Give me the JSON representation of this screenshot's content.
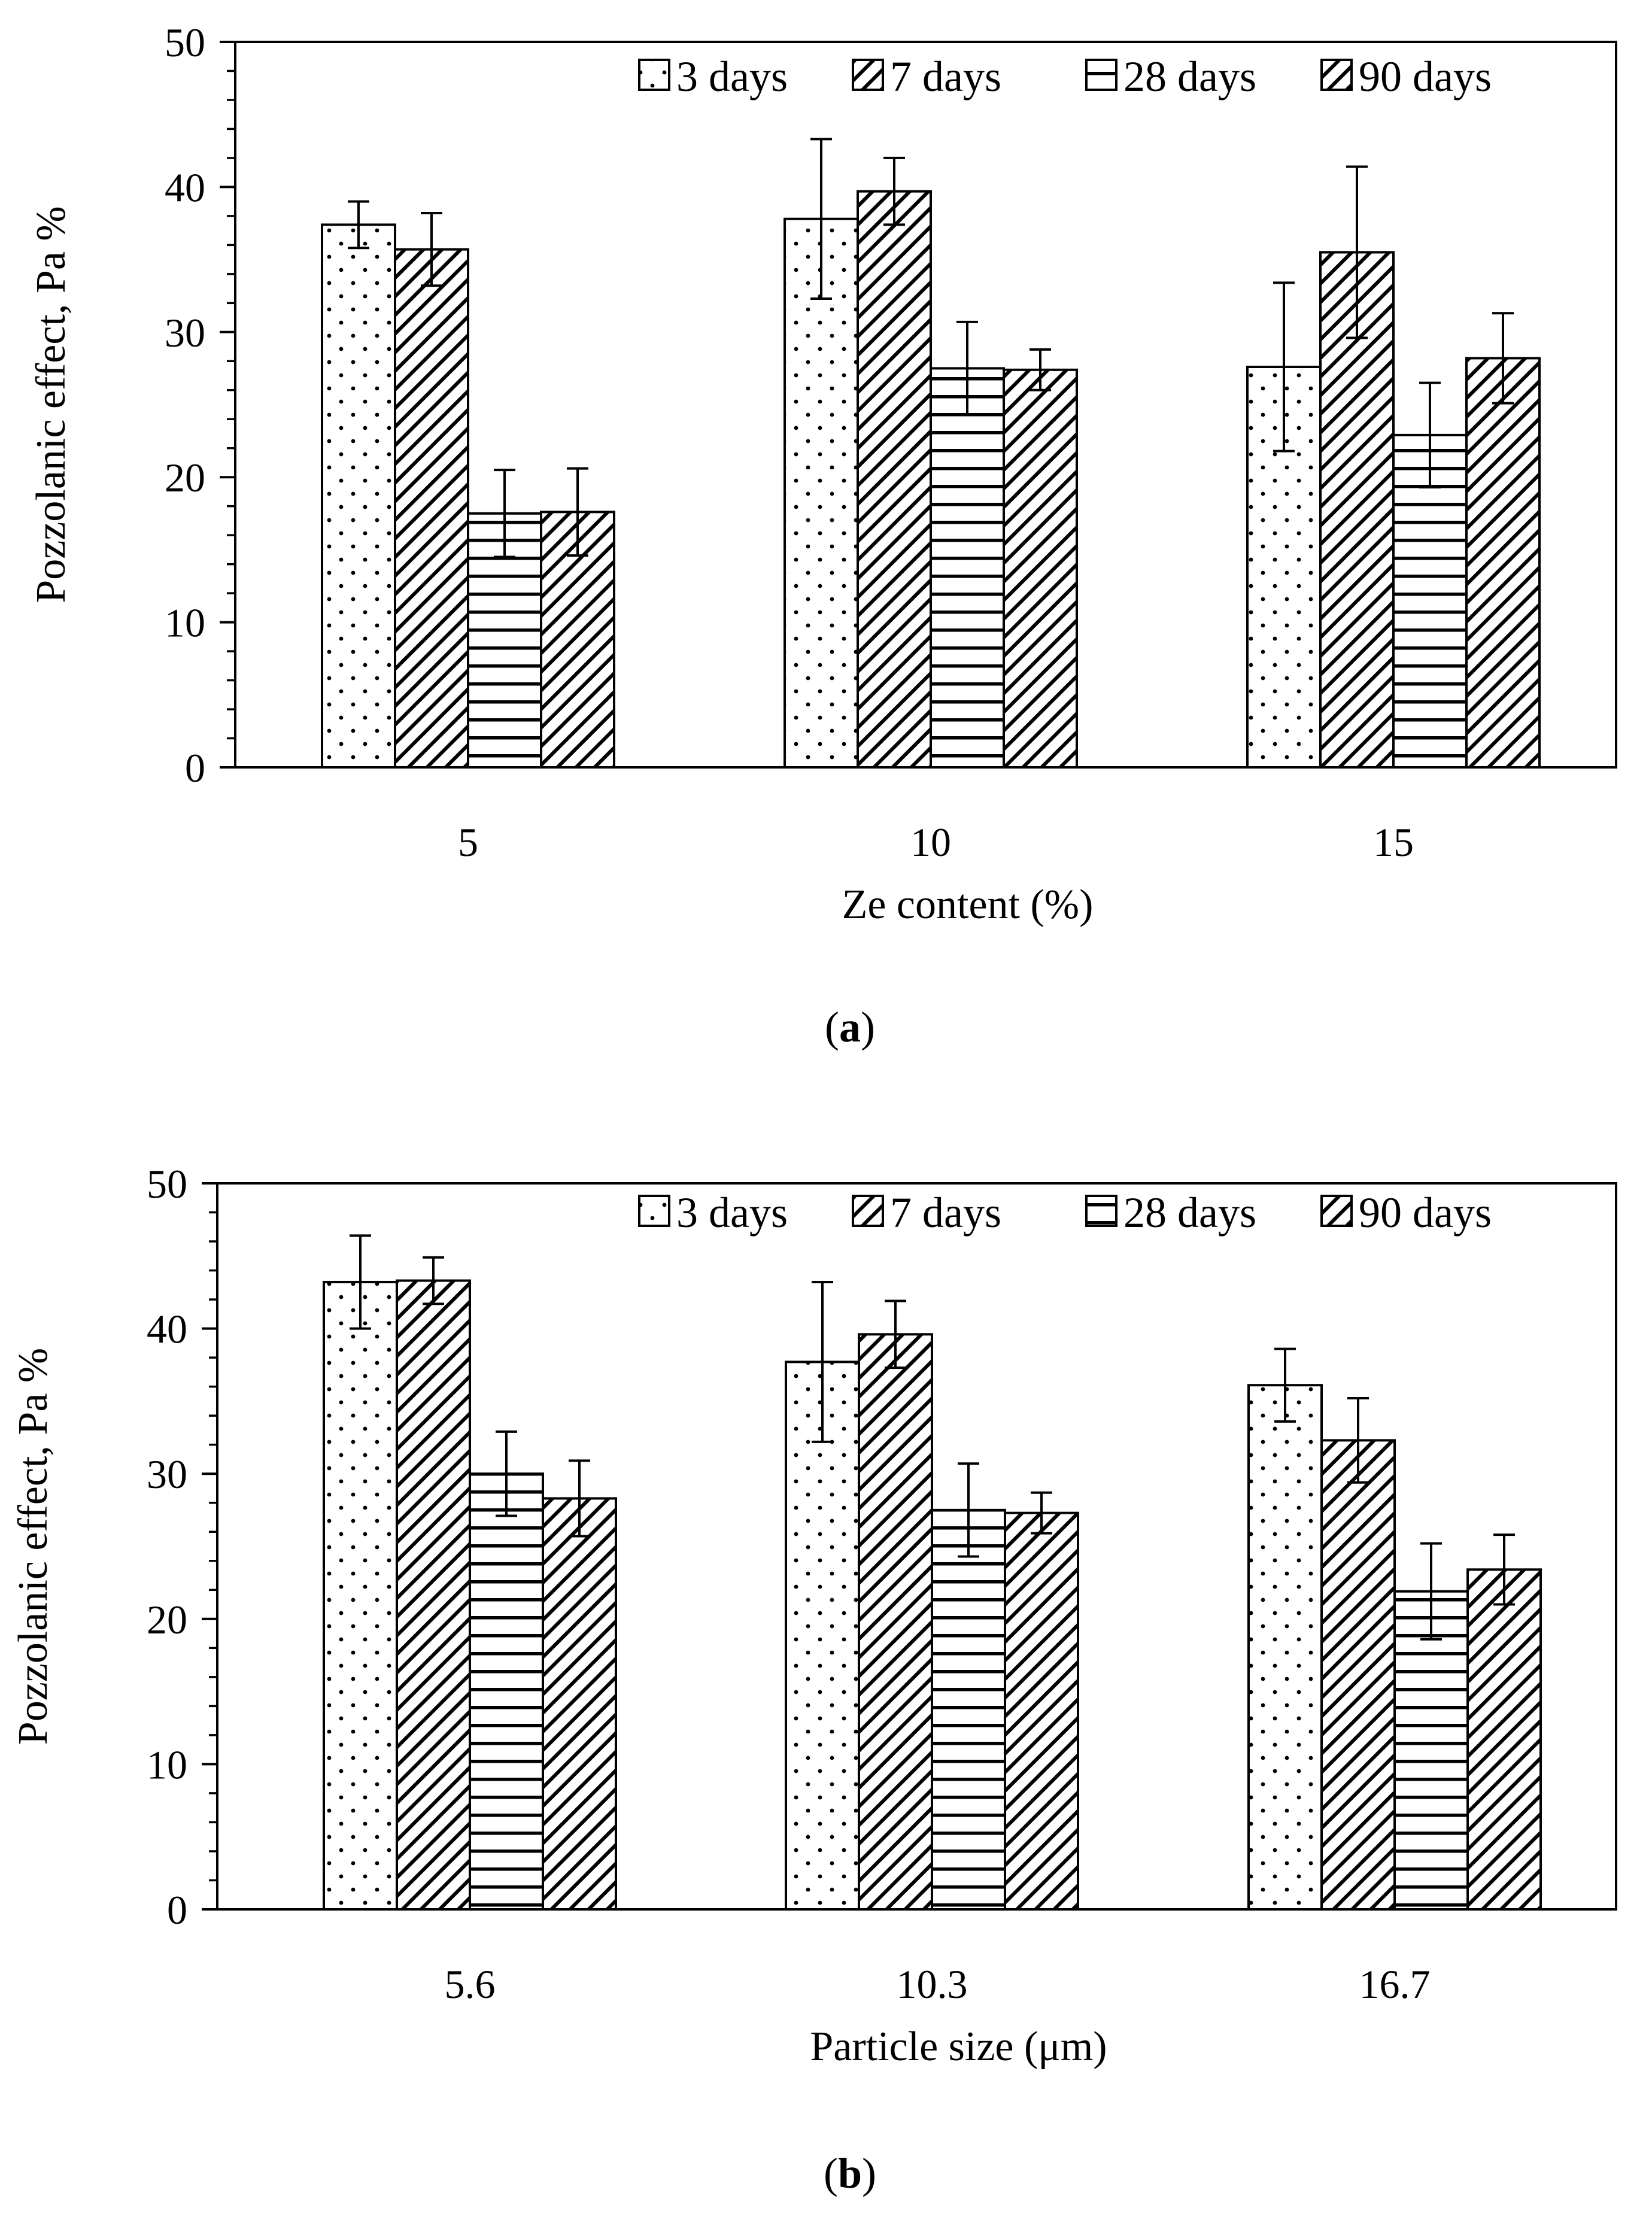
{
  "legend": [
    "3 days",
    "7 days",
    "28 days",
    "90 days"
  ],
  "chart_data": [
    {
      "type": "bar",
      "panel": "a",
      "caption": "a",
      "title": "",
      "xlabel": "Ze content (%)",
      "ylabel": "Pozzolanic effect, Pa %",
      "ylim": [
        0,
        50
      ],
      "yticks": [
        0,
        10,
        20,
        30,
        40,
        50
      ],
      "grid": false,
      "legend_position": "top-right",
      "categories": [
        "5",
        "10",
        "15"
      ],
      "series": [
        {
          "name": "3 days",
          "pattern": "dots",
          "values": [
            37.4,
            37.8,
            27.6
          ],
          "errors": [
            1.6,
            5.5,
            5.8
          ]
        },
        {
          "name": "7 days",
          "pattern": "diag",
          "values": [
            35.7,
            39.7,
            35.5
          ],
          "errors": [
            2.5,
            2.3,
            5.9
          ]
        },
        {
          "name": "28 days",
          "pattern": "horiz",
          "values": [
            17.5,
            27.5,
            22.9
          ],
          "errors": [
            3.0,
            3.2,
            3.6
          ]
        },
        {
          "name": "90 days",
          "pattern": "diag",
          "values": [
            17.6,
            27.4,
            28.2
          ],
          "errors": [
            3.0,
            1.4,
            3.1
          ]
        }
      ]
    },
    {
      "type": "bar",
      "panel": "b",
      "caption": "b",
      "title": "",
      "xlabel": "Particle size (μm)",
      "ylabel": "Pozzolanic effect, Pa %",
      "ylim": [
        0,
        50
      ],
      "yticks": [
        0,
        10,
        20,
        30,
        40,
        50
      ],
      "grid": false,
      "legend_position": "top-right",
      "categories": [
        "5.6",
        "10.3",
        "16.7"
      ],
      "series": [
        {
          "name": "3 days",
          "pattern": "dots",
          "values": [
            43.2,
            37.7,
            36.1
          ],
          "errors": [
            3.2,
            5.5,
            2.5
          ]
        },
        {
          "name": "7 days",
          "pattern": "diag",
          "values": [
            43.3,
            39.6,
            32.3
          ],
          "errors": [
            1.6,
            2.3,
            2.9
          ]
        },
        {
          "name": "28 days",
          "pattern": "horiz",
          "values": [
            30.0,
            27.5,
            21.9
          ],
          "errors": [
            2.9,
            3.2,
            3.3
          ]
        },
        {
          "name": "90 days",
          "pattern": "diag",
          "values": [
            28.3,
            27.3,
            23.4
          ],
          "errors": [
            2.6,
            1.4,
            2.4
          ]
        }
      ]
    }
  ]
}
